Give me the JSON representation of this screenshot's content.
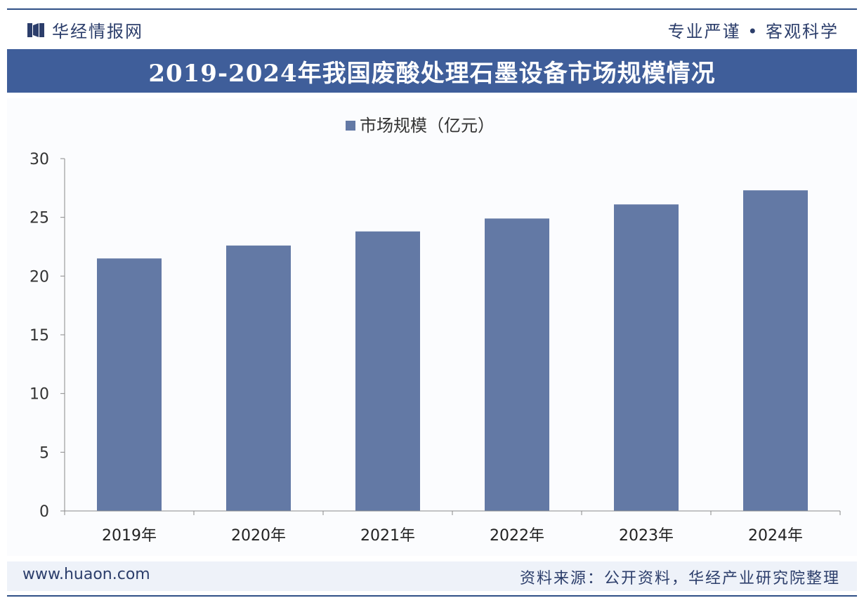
{
  "header": {
    "brand_name": "华经情报网",
    "motto": "专业严谨 • 客观科学",
    "title": "2019-2024年我国废酸处理石墨设备市场规模情况"
  },
  "footer": {
    "website": "www.huaon.com",
    "source": "资料来源：公开资料，华经产业研究院整理"
  },
  "colors": {
    "bar": "#6379a5",
    "banner": "#3f5e9a",
    "text_dark": "#2c3e6b"
  },
  "chart_data": {
    "type": "bar",
    "categories": [
      "2019年",
      "2020年",
      "2021年",
      "2022年",
      "2023年",
      "2024年"
    ],
    "series": [
      {
        "name": "市场规模（亿元）",
        "values": [
          21.5,
          22.6,
          23.8,
          24.9,
          26.1,
          27.3
        ]
      }
    ],
    "ylim": [
      0,
      30
    ],
    "yticks": [
      0,
      5,
      10,
      15,
      20,
      25,
      30
    ],
    "legend_position": "top-center",
    "grid": false
  }
}
